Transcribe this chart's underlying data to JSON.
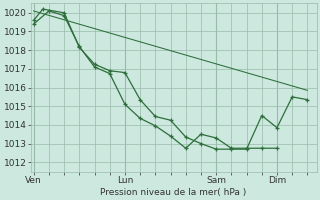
{
  "background_color": "#cce8df",
  "grid_color": "#99bbaa",
  "line_color": "#2d6e3a",
  "marker_color": "#2d6e3a",
  "xlabel": "Pression niveau de la mer( hPa )",
  "ylim": [
    1011.5,
    1020.5
  ],
  "yticks": [
    1012,
    1013,
    1014,
    1015,
    1016,
    1017,
    1018,
    1019,
    1020
  ],
  "series1_x": [
    0,
    0.5,
    1.0,
    1.5,
    2.0,
    2.5,
    3.0,
    3.5,
    4.0,
    4.5,
    5.0,
    5.5,
    6.0,
    6.5,
    7.0,
    7.5,
    8.0
  ],
  "series1_y": [
    1019.4,
    1020.1,
    1019.85,
    1018.2,
    1017.1,
    1016.75,
    1015.1,
    1014.35,
    1013.95,
    1013.4,
    1012.75,
    1013.5,
    1013.3,
    1012.75,
    1012.75,
    1012.75,
    1012.75
  ],
  "series2_x": [
    0,
    0.3,
    1.0,
    1.5,
    2.0,
    2.5,
    3.0,
    3.5,
    4.0,
    4.5,
    5.0,
    5.5,
    6.0,
    6.5,
    7.0,
    7.5,
    8.0,
    8.5,
    9.0
  ],
  "series2_y": [
    1019.6,
    1020.2,
    1020.0,
    1018.15,
    1017.25,
    1016.9,
    1016.8,
    1015.35,
    1014.45,
    1014.25,
    1013.35,
    1013.0,
    1012.7,
    1012.7,
    1012.7,
    1014.5,
    1013.85,
    1015.5,
    1015.35
  ],
  "series3_x": [
    0,
    9.0
  ],
  "series3_y": [
    1020.1,
    1015.85
  ],
  "x_tick_positions": [
    0.0,
    3.0,
    6.0,
    8.0
  ],
  "x_tick_labels": [
    "Ven",
    "Lun",
    "Sam",
    "Dim"
  ],
  "xlim": [
    -0.1,
    9.3
  ],
  "figsize": [
    3.2,
    2.0
  ],
  "dpi": 100
}
